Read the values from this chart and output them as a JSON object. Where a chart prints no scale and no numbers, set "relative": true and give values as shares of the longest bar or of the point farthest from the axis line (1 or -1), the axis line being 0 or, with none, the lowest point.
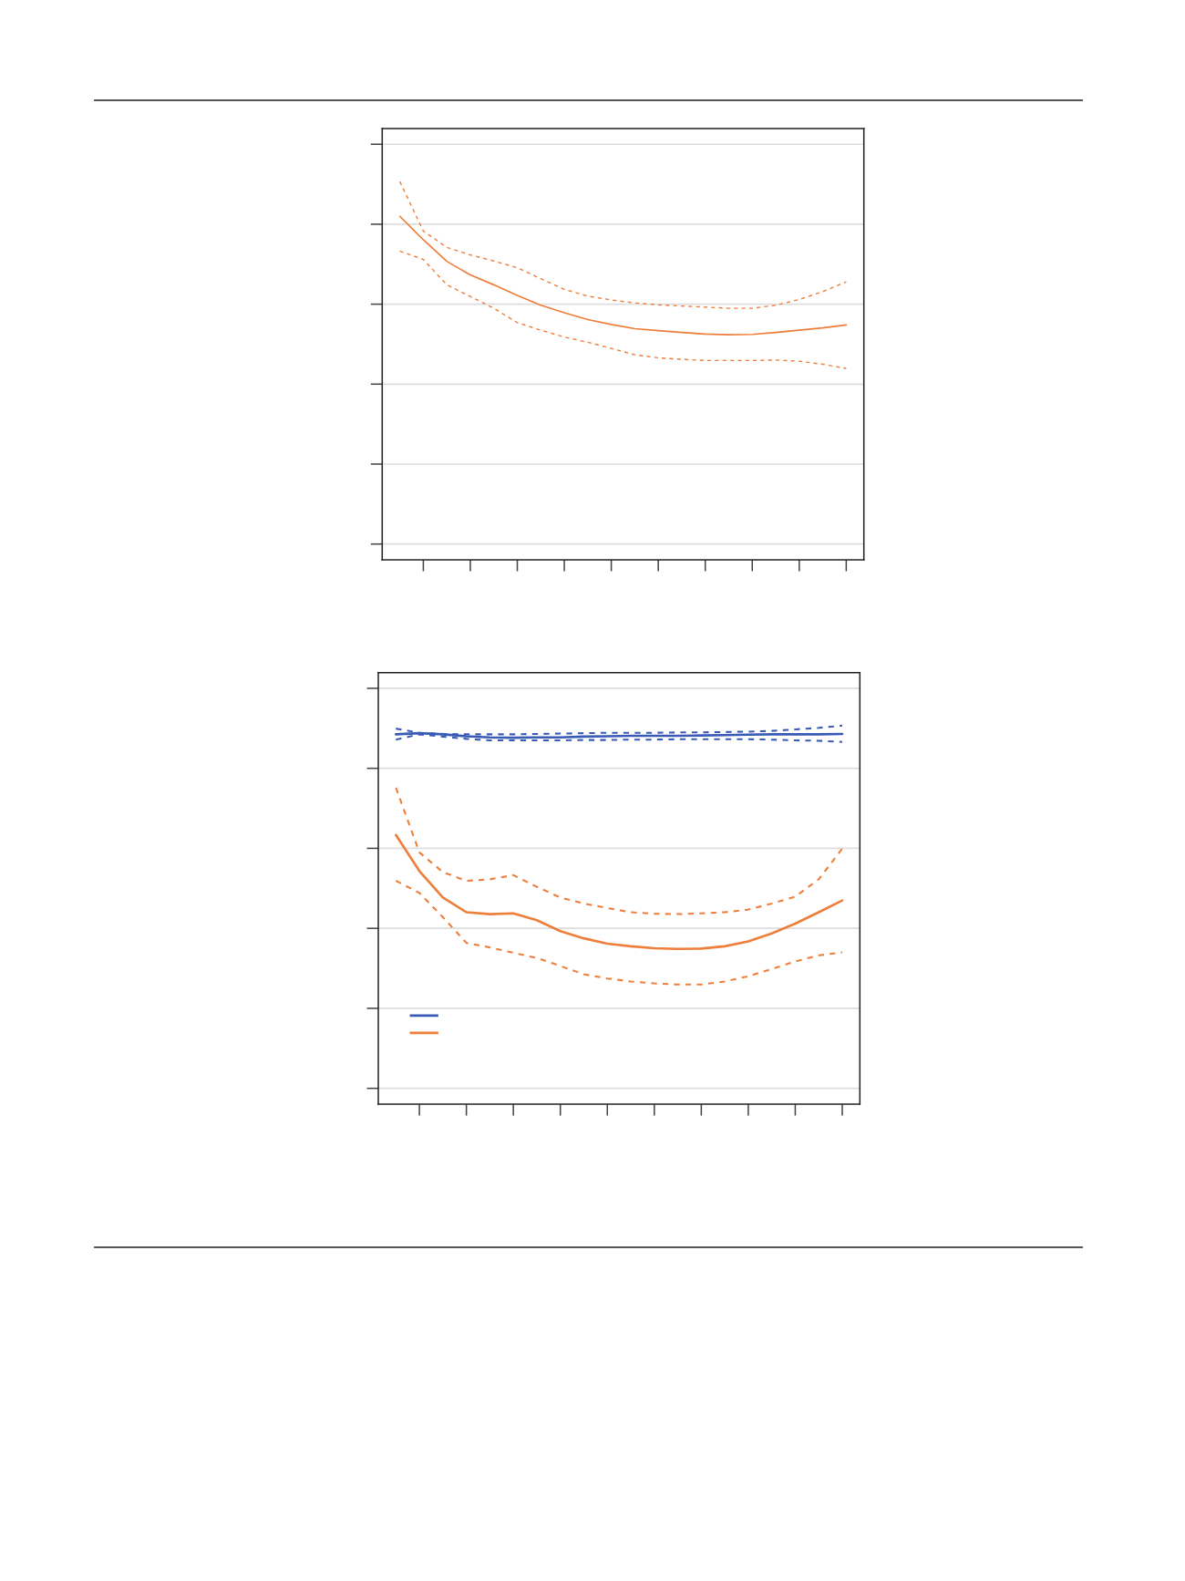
{
  "chart_data": [
    {
      "type": "line",
      "relative": true,
      "grid": "y",
      "categories": [
        null,
        null,
        null,
        null,
        null,
        null,
        null,
        null,
        null,
        null,
        null,
        null,
        null,
        null,
        null,
        null,
        null,
        null,
        null,
        null
      ],
      "series": [
        {
          "color": "#ee7d3a",
          "line_style": "solid",
          "values": [
            0.908,
            0.846,
            0.789,
            0.753,
            0.727,
            0.699,
            0.673,
            0.653,
            0.635,
            0.622,
            0.611,
            0.606,
            0.601,
            0.597,
            0.595,
            0.596,
            0.601,
            0.607,
            0.613,
            0.621
          ]
        },
        {
          "color": "#ee7d3a",
          "line_style": "dashed",
          "values": [
            1.0,
            0.869,
            0.826,
            0.806,
            0.79,
            0.772,
            0.743,
            0.715,
            0.697,
            0.687,
            0.679,
            0.674,
            0.671,
            0.668,
            0.665,
            0.665,
            0.673,
            0.688,
            0.709,
            0.735
          ]
        },
        {
          "color": "#ee7d3a",
          "line_style": "dashed",
          "values": [
            0.816,
            0.794,
            0.727,
            0.696,
            0.665,
            0.627,
            0.607,
            0.589,
            0.575,
            0.559,
            0.542,
            0.534,
            0.53,
            0.527,
            0.527,
            0.527,
            0.528,
            0.525,
            0.517,
            0.506
          ]
        }
      ]
    },
    {
      "type": "line",
      "relative": true,
      "grid": "y",
      "categories": [
        null,
        null,
        null,
        null,
        null,
        null,
        null,
        null,
        null,
        null,
        null,
        null,
        null,
        null,
        null,
        null,
        null,
        null,
        null,
        null
      ],
      "series": [
        {
          "color": "#3a5bb5",
          "line_style": "solid",
          "values": [
            0.977,
            0.98,
            0.977,
            0.972,
            0.969,
            0.968,
            0.969,
            0.969,
            0.971,
            0.972,
            0.973,
            0.973,
            0.973,
            0.974,
            0.975,
            0.976,
            0.977,
            0.977,
            0.977,
            0.978
          ]
        },
        {
          "color": "#3a5bb5",
          "line_style": "dashed",
          "values": [
            0.992,
            0.981,
            0.978,
            0.977,
            0.977,
            0.977,
            0.978,
            0.979,
            0.98,
            0.981,
            0.981,
            0.981,
            0.982,
            0.982,
            0.983,
            0.984,
            0.986,
            0.99,
            0.994,
            1.0
          ]
        },
        {
          "color": "#3a5bb5",
          "line_style": "dashed",
          "values": [
            0.963,
            0.977,
            0.971,
            0.965,
            0.961,
            0.961,
            0.961,
            0.961,
            0.962,
            0.962,
            0.963,
            0.963,
            0.964,
            0.964,
            0.964,
            0.964,
            0.963,
            0.961,
            0.96,
            0.957
          ]
        },
        {
          "color": "#ee7f3b",
          "line_style": "solid",
          "values": [
            0.711,
            0.616,
            0.546,
            0.507,
            0.502,
            0.504,
            0.486,
            0.457,
            0.438,
            0.424,
            0.417,
            0.412,
            0.41,
            0.411,
            0.417,
            0.43,
            0.451,
            0.477,
            0.507,
            0.538
          ]
        },
        {
          "color": "#ee7f3b",
          "line_style": "dashed",
          "values": [
            0.836,
            0.665,
            0.613,
            0.59,
            0.594,
            0.605,
            0.574,
            0.546,
            0.53,
            0.518,
            0.507,
            0.503,
            0.502,
            0.504,
            0.507,
            0.514,
            0.53,
            0.548,
            0.594,
            0.675
          ]
        },
        {
          "color": "#ee7f3b",
          "line_style": "dashed",
          "values": [
            0.59,
            0.558,
            0.494,
            0.426,
            0.414,
            0.4,
            0.386,
            0.365,
            0.343,
            0.332,
            0.324,
            0.319,
            0.316,
            0.316,
            0.324,
            0.338,
            0.357,
            0.377,
            0.393,
            0.401
          ]
        }
      ]
    }
  ]
}
